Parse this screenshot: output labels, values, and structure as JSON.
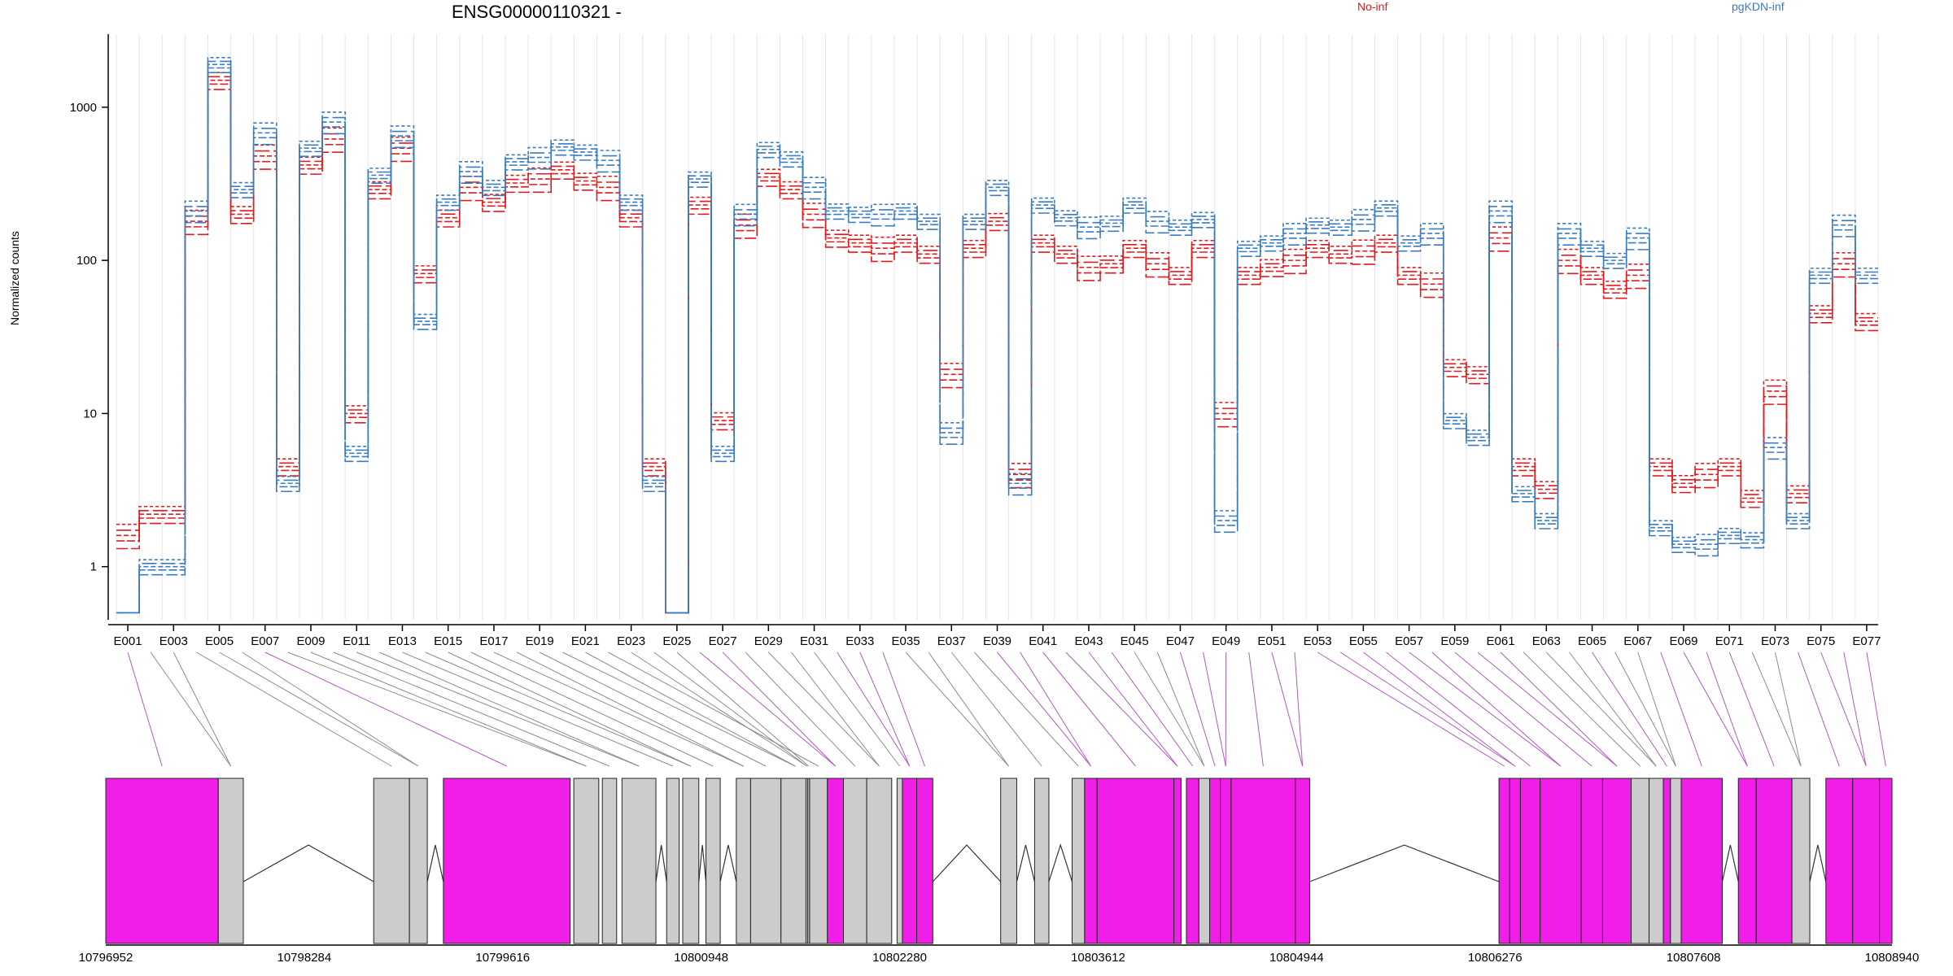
{
  "gene_title": "ENSG00000110321 -",
  "ylabel": "Normalized counts",
  "legend": [
    {
      "label": "No-inf",
      "color": "#e31a1c"
    },
    {
      "label": "pgKDN-inf",
      "color": "#3a7cc0"
    }
  ],
  "colors": {
    "exon_tested": "#f01ee8",
    "exon_other": "#cccccc",
    "connector_tested": "#b05ac0",
    "connector_other": "#8c8c8c"
  },
  "chart_data": {
    "type": "line",
    "scale": "log",
    "ylim": [
      0.45,
      3000
    ],
    "yticks": [
      1,
      10,
      100,
      1000
    ],
    "ytick_labels": [
      "1",
      "10",
      "100",
      "1000"
    ],
    "exons": [
      "E001",
      "E002",
      "E003",
      "E004",
      "E005",
      "E006",
      "E007",
      "E008",
      "E009",
      "E010",
      "E011",
      "E012",
      "E013",
      "E014",
      "E015",
      "E016",
      "E017",
      "E018",
      "E019",
      "E020",
      "E021",
      "E022",
      "E023",
      "E024",
      "E025",
      "E026",
      "E027",
      "E028",
      "E029",
      "E030",
      "E031",
      "E032",
      "E033",
      "E034",
      "E035",
      "E036",
      "E037",
      "E038",
      "E039",
      "E040",
      "E041",
      "E042",
      "E043",
      "E044",
      "E045",
      "E046",
      "E047",
      "E048",
      "E049",
      "E050",
      "E051",
      "E052",
      "E053",
      "E054",
      "E055",
      "E056",
      "E057",
      "E058",
      "E059",
      "E060",
      "E061",
      "E062",
      "E063",
      "E064",
      "E065",
      "E066",
      "E067",
      "E068",
      "E069",
      "E070",
      "E071",
      "E072",
      "E073",
      "E074",
      "E075",
      "E076",
      "E077"
    ],
    "xtick_labels": [
      "E001",
      "E003",
      "E005",
      "E007",
      "E009",
      "E011",
      "E013",
      "E015",
      "E017",
      "E019",
      "E021",
      "E023",
      "E025",
      "E027",
      "E029",
      "E031",
      "E033",
      "E035",
      "E037",
      "E039",
      "E041",
      "E043",
      "E045",
      "E047",
      "E049",
      "E051",
      "E053",
      "E055",
      "E057",
      "E059",
      "E061",
      "E063",
      "E065",
      "E067",
      "E069",
      "E071",
      "E073",
      "E075",
      "E077"
    ],
    "series": [
      {
        "name": "No-inf",
        "values": [
          1.6,
          2.2,
          2.2,
          180,
          1500,
          200,
          480,
          4.5,
          420,
          620,
          10,
          290,
          540,
          82,
          190,
          300,
          240,
          320,
          340,
          390,
          330,
          300,
          190,
          4.5,
          0.5,
          230,
          9,
          170,
          350,
          290,
          200,
          140,
          130,
          120,
          130,
          110,
          18,
          120,
          180,
          4.0,
          130,
          110,
          90,
          95,
          120,
          95,
          80,
          120,
          10,
          80,
          90,
          100,
          120,
          110,
          115,
          130,
          80,
          70,
          20,
          18,
          140,
          4.5,
          3.2,
          100,
          80,
          65,
          80,
          4.5,
          3.5,
          4.0,
          4.5,
          2.8,
          14,
          3.0,
          45,
          95,
          40
        ]
      },
      {
        "name": "pgKDN-inf",
        "values": [
          0.5,
          1.0,
          1.0,
          210,
          1900,
          290,
          680,
          3.5,
          540,
          800,
          5.5,
          360,
          650,
          40,
          240,
          380,
          300,
          440,
          470,
          550,
          510,
          450,
          240,
          3.5,
          0.5,
          340,
          5.5,
          200,
          530,
          460,
          300,
          210,
          200,
          200,
          210,
          180,
          7.5,
          180,
          300,
          3.5,
          230,
          190,
          165,
          175,
          230,
          180,
          165,
          185,
          2.0,
          120,
          130,
          150,
          170,
          165,
          185,
          220,
          130,
          150,
          9,
          7,
          210,
          3.0,
          2.0,
          150,
          120,
          100,
          140,
          1.8,
          1.4,
          1.4,
          1.6,
          1.5,
          6.0,
          2.0,
          80,
          170,
          80
        ]
      }
    ],
    "genomic_ticks": [
      "10796952",
      "10798284",
      "10799616",
      "10800948",
      "10802280",
      "10803612",
      "10804944",
      "10806276",
      "10807608",
      "10808940"
    ]
  }
}
